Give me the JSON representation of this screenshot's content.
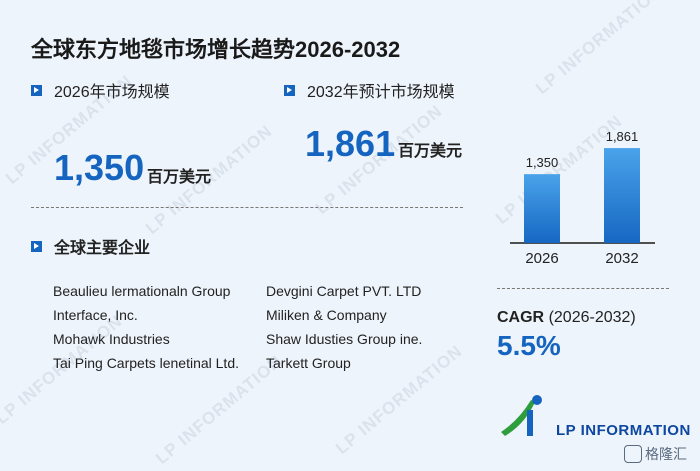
{
  "title": "全球东方地毯市场增长趋势2026-2032",
  "size_2026": {
    "label": "2026年市场规模",
    "value": "1,350",
    "unit": "百万美元"
  },
  "size_2032": {
    "label": "2032年预计市场规模",
    "value": "1,861",
    "unit": "百万美元"
  },
  "companies_heading": "全球主要企业",
  "companies": [
    "Beaulieu lermationaln Group",
    "Devgini Carpet PVT. LTD",
    "Interface, Inc.",
    "Miliken & Company",
    "Mohawk Industries",
    "Shaw Idusties Group ine.",
    "Tai Ping Carpets lenetinal Ltd.",
    "Tarkett Group"
  ],
  "cagr": {
    "label": "CAGR",
    "period": "(2026-2032)",
    "value": "5.5%"
  },
  "brand": {
    "logo_text": "LP INFORMATION",
    "watermark": "LP INFORMATION",
    "gelonghui": "格隆汇"
  },
  "colors": {
    "accent": "#1565c0",
    "bar_top": "#4aa3ea",
    "bar_bottom": "#1667c2",
    "background": "#eef4fb"
  },
  "chart_data": {
    "type": "bar",
    "categories": [
      "2026",
      "2032"
    ],
    "values": [
      1350,
      1861
    ],
    "data_labels": [
      "1,350",
      "1,861"
    ],
    "ylim": [
      0,
      2000
    ],
    "grid": false,
    "legend": "none"
  }
}
